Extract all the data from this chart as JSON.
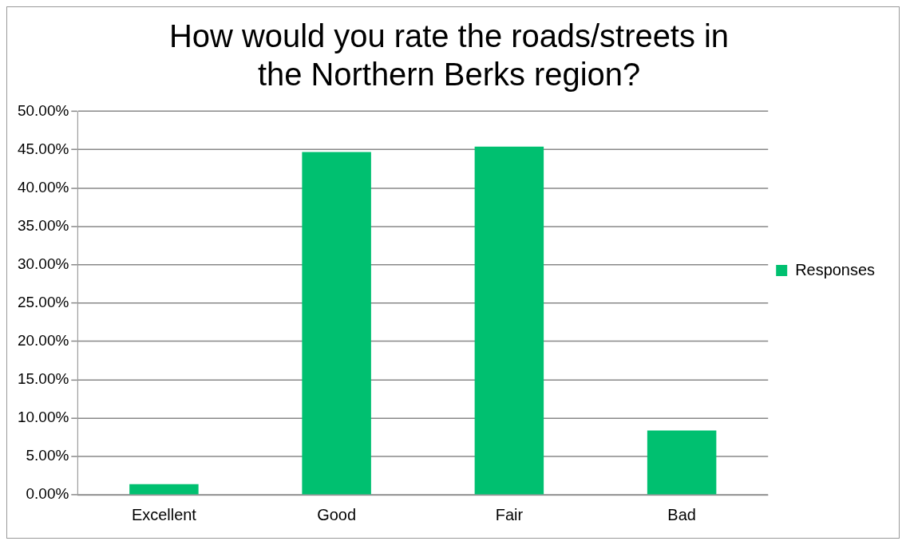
{
  "chart_data": {
    "type": "bar",
    "title": "How would you rate the roads/streets in the Northern Berks region?",
    "categories": [
      "Excellent",
      "Good",
      "Fair",
      "Bad"
    ],
    "series": [
      {
        "name": "Responses",
        "color": "#00c070",
        "values": [
          1.4,
          44.7,
          45.4,
          8.4
        ]
      }
    ],
    "ylim": [
      0,
      50
    ],
    "yticks": [
      {
        "value": 0,
        "label": "0.00%"
      },
      {
        "value": 5,
        "label": "5.00%"
      },
      {
        "value": 10,
        "label": "10.00%"
      },
      {
        "value": 15,
        "label": "15.00%"
      },
      {
        "value": 20,
        "label": "20.00%"
      },
      {
        "value": 25,
        "label": "25.00%"
      },
      {
        "value": 30,
        "label": "30.00%"
      },
      {
        "value": 35,
        "label": "35.00%"
      },
      {
        "value": 40,
        "label": "40.00%"
      },
      {
        "value": 45,
        "label": "45.00%"
      },
      {
        "value": 50,
        "label": "50.00%"
      }
    ],
    "grid": "y",
    "legend": "right"
  }
}
